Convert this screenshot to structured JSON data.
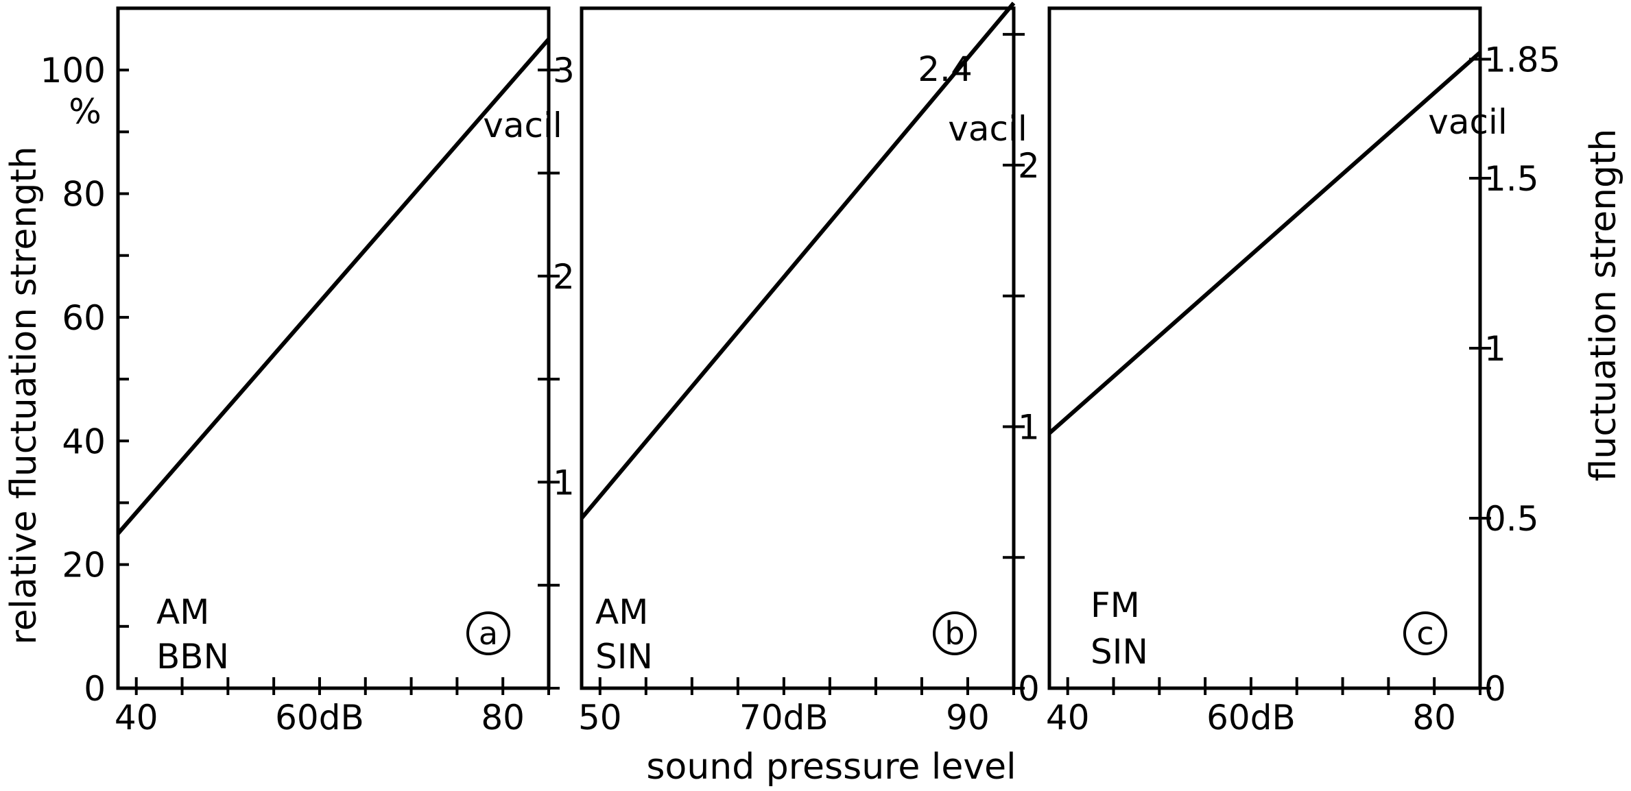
{
  "chart_data": {
    "shared": {
      "xlabel": "sound pressure level",
      "ylabel_left": "relative fluctuation strength",
      "ylabel_right": "fluctuation strength"
    },
    "panels": [
      {
        "id": "a",
        "type": "line",
        "panel_label": "a",
        "stimulus": [
          "AM",
          "BBN"
        ],
        "xlim": [
          38,
          85
        ],
        "x_ticks": [
          40,
          45,
          50,
          55,
          60,
          65,
          70,
          75,
          80,
          85
        ],
        "x_tick_labels": [
          {
            "v": 40,
            "t": "40"
          },
          {
            "v": 60,
            "t": "60dB"
          },
          {
            "v": 80,
            "t": "80"
          }
        ],
        "y_left": {
          "lim": [
            0,
            110
          ],
          "ticks": [
            0,
            10,
            20,
            30,
            40,
            50,
            60,
            70,
            80,
            90,
            100
          ],
          "labels": [
            "0",
            "20",
            "40",
            "60",
            "80",
            "100"
          ],
          "unit": "%"
        },
        "y_right": {
          "lim": [
            0,
            3.3
          ],
          "ticks": [
            0,
            0.5,
            1,
            1.5,
            2,
            2.5,
            3
          ],
          "labels": [
            {
              "v": 1,
              "t": "1"
            },
            {
              "v": 2,
              "t": "2"
            },
            {
              "v": 3,
              "t": "3"
            }
          ],
          "unit": "vacil"
        },
        "series": [
          {
            "name": "AM BBN",
            "x": [
              38,
              85
            ],
            "y": [
              25,
              105
            ]
          }
        ]
      },
      {
        "id": "b",
        "type": "line",
        "panel_label": "b",
        "stimulus": [
          "AM",
          "SIN"
        ],
        "xlim": [
          48,
          95
        ],
        "x_ticks": [
          50,
          55,
          60,
          65,
          70,
          75,
          80,
          85,
          90,
          95
        ],
        "x_tick_labels": [
          {
            "v": 50,
            "t": "50"
          },
          {
            "v": 70,
            "t": "70dB"
          },
          {
            "v": 90,
            "t": "90"
          }
        ],
        "y_right": {
          "lim": [
            0,
            2.6
          ],
          "ticks": [
            0,
            0.5,
            1,
            1.5,
            2,
            2.5
          ],
          "labels": [
            {
              "v": 0,
              "t": "0"
            },
            {
              "v": 1,
              "t": "1"
            },
            {
              "v": 2,
              "t": "2"
            }
          ],
          "unit": "vacil"
        },
        "annotation": "2.4",
        "series": [
          {
            "name": "AM SIN",
            "x": [
              48,
              95
            ],
            "y": [
              0.65,
              2.62
            ]
          }
        ]
      },
      {
        "id": "c",
        "type": "line",
        "panel_label": "c",
        "stimulus": [
          "FM",
          "SIN"
        ],
        "xlim": [
          38,
          85
        ],
        "x_ticks": [
          40,
          45,
          50,
          55,
          60,
          65,
          70,
          75,
          80,
          85
        ],
        "x_tick_labels": [
          {
            "v": 40,
            "t": "40"
          },
          {
            "v": 60,
            "t": "60dB"
          },
          {
            "v": 80,
            "t": "80"
          }
        ],
        "y_right": {
          "lim": [
            0,
            2.0
          ],
          "ticks": [
            0,
            0.5,
            1,
            1.5,
            1.85
          ],
          "labels": [
            {
              "v": 0,
              "t": "0"
            },
            {
              "v": 0.5,
              "t": "0.5"
            },
            {
              "v": 1,
              "t": "1"
            },
            {
              "v": 1.5,
              "t": "1.5"
            },
            {
              "v": 1.85,
              "t": "1.85"
            }
          ],
          "unit": "vacil"
        },
        "series": [
          {
            "name": "FM SIN",
            "x": [
              38,
              85
            ],
            "y": [
              0.75,
              1.87
            ]
          }
        ]
      }
    ]
  }
}
